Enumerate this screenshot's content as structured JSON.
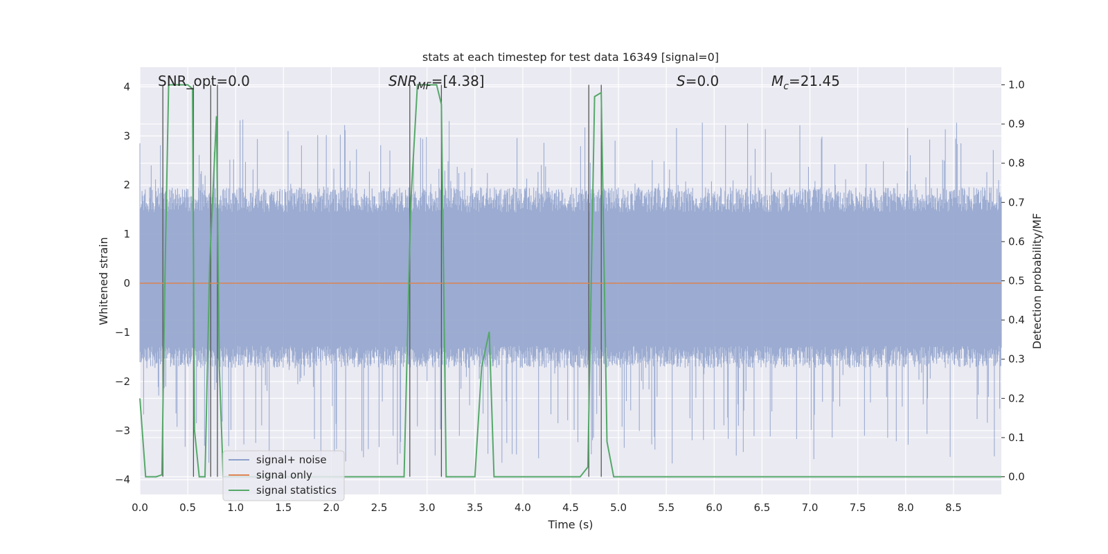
{
  "chart_data": {
    "type": "line",
    "title": "stats at each timestep for test data 16349 [signal=0]",
    "xlabel": "Time (s)",
    "ylabel_left": "Whitened strain",
    "ylabel_right": "Detection probability/MF",
    "xlim": [
      0.0,
      9.0
    ],
    "ylim_left": [
      -4.3,
      4.4
    ],
    "ylim_right": [
      -0.045,
      1.045
    ],
    "x_ticks": [
      "0.0",
      "0.5",
      "1.0",
      "1.5",
      "2.0",
      "2.5",
      "3.0",
      "3.5",
      "4.0",
      "4.5",
      "5.0",
      "5.5",
      "6.0",
      "6.5",
      "7.0",
      "7.5",
      "8.0",
      "8.5"
    ],
    "y_ticks_left": [
      "4",
      "3",
      "2",
      "1",
      "0",
      "−1",
      "−2",
      "−3",
      "−4"
    ],
    "y_ticks_right": [
      "1.0",
      "0.9",
      "0.8",
      "0.7",
      "0.6",
      "0.5",
      "0.4",
      "0.3",
      "0.2",
      "0.1",
      "0.0"
    ],
    "grid": true,
    "legend_placement": "lower-left",
    "annotations": [
      {
        "main": "SNR_opt=0.0",
        "sub": "",
        "rest": ""
      },
      {
        "main": "SNR",
        "sub": "MF",
        "rest": "=[4.38]"
      },
      {
        "main": "S",
        "sub": "",
        "rest": "=0.0"
      },
      {
        "main": "M",
        "sub": "c",
        "rest": "=21.45"
      }
    ],
    "series": [
      {
        "name": "signal+ noise",
        "color": "#8da0cb",
        "axis": "left",
        "note_level": "noisy strain, typical band about -1.5 to 1.7, peaks to about +/-3.5",
        "band": [
          -1.5,
          1.7
        ],
        "peak_range": [
          -3.7,
          3.35
        ]
      },
      {
        "name": "signal only",
        "color": "#dd8452",
        "axis": "left",
        "x": [
          0.0,
          9.0
        ],
        "y": [
          0.0,
          0.0
        ]
      },
      {
        "name": "signal statistics",
        "color": "#55a868",
        "axis": "right",
        "x": [
          0.0,
          0.06,
          0.17,
          0.23,
          0.26,
          0.3,
          0.33,
          0.4,
          0.5,
          0.55,
          0.57,
          0.62,
          0.68,
          0.73,
          0.8,
          0.83,
          0.87,
          0.9,
          1.0,
          2.0,
          2.76,
          2.83,
          2.9,
          3.0,
          3.1,
          3.15,
          3.2,
          3.3,
          3.5,
          3.57,
          3.65,
          3.7,
          3.8,
          4.6,
          4.68,
          4.75,
          4.82,
          4.88,
          4.95,
          5.05,
          9.0
        ],
        "y": [
          0.2,
          0.0,
          0.0,
          0.005,
          0.48,
          1.0,
          1.0,
          1.0,
          1.0,
          0.99,
          0.12,
          0.0,
          0.0,
          0.55,
          0.92,
          0.28,
          0.0,
          0.0,
          0.0,
          0.0,
          0.0,
          0.7,
          1.0,
          1.0,
          1.0,
          0.95,
          0.0,
          0.0,
          0.0,
          0.28,
          0.37,
          0.0,
          0.0,
          0.0,
          0.025,
          0.97,
          0.98,
          0.09,
          0.0,
          0.0,
          0.0
        ]
      }
    ],
    "vertical_markers_x": [
      0.24,
      0.56,
      0.74,
      0.81,
      2.82,
      3.15,
      4.69,
      4.82
    ]
  }
}
